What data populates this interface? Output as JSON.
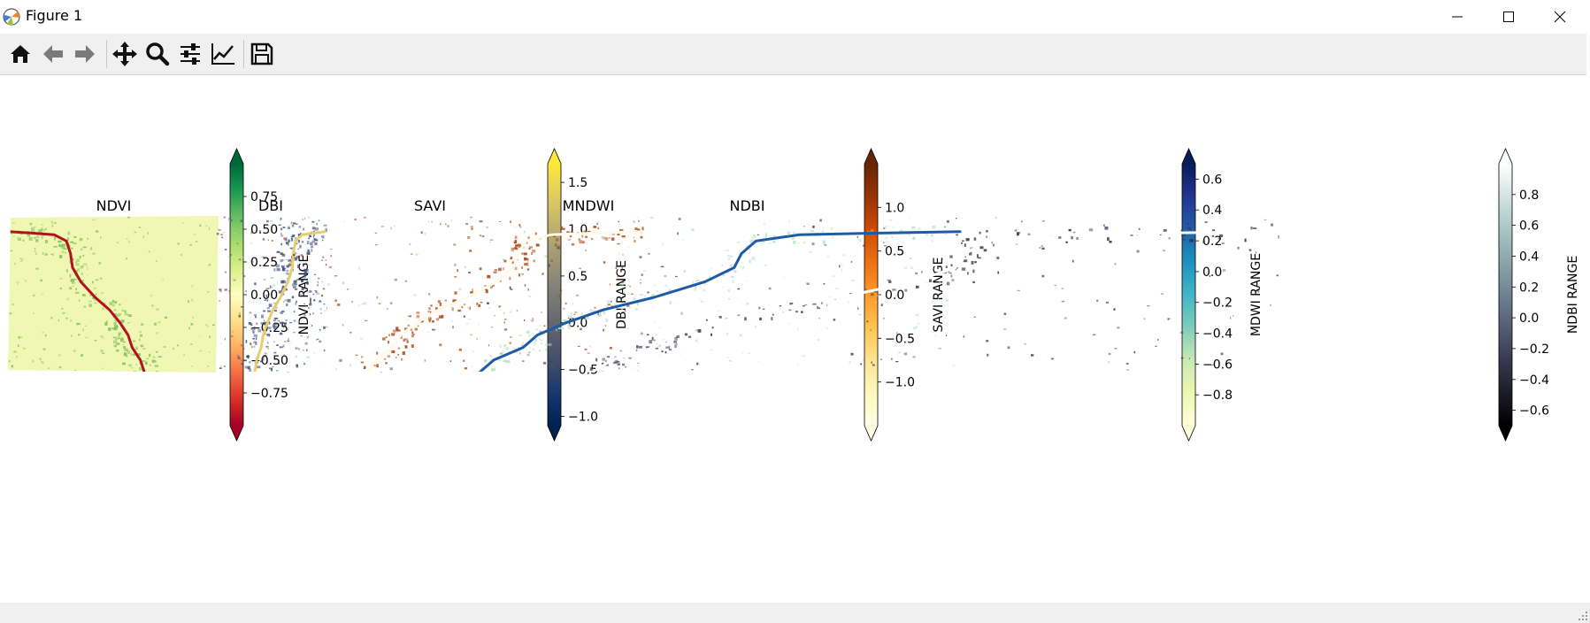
{
  "window": {
    "title": "Figure 1",
    "app_icon": "matplotlib-icon",
    "controls": [
      "minimize-icon",
      "maximize-icon",
      "close-icon"
    ]
  },
  "toolbar": {
    "buttons": [
      {
        "name": "home-button",
        "icon": "home-icon"
      },
      {
        "name": "back-button",
        "icon": "arrow-left-icon"
      },
      {
        "name": "forward-button",
        "icon": "arrow-right-icon"
      },
      {
        "name": "pan-button",
        "icon": "move-icon"
      },
      {
        "name": "zoom-button",
        "icon": "magnifier-icon"
      },
      {
        "name": "subplots-button",
        "icon": "sliders-icon"
      },
      {
        "name": "edit-axes-button",
        "icon": "line-chart-icon"
      },
      {
        "name": "save-button",
        "icon": "floppy-disk-icon"
      }
    ]
  },
  "figure": {
    "panels": [
      {
        "title": "NDVI",
        "colorbar_label": "NDVI_RANGE",
        "colormap": "RdYlGn",
        "colormap_stops": [
          "#a50026",
          "#d73027",
          "#f46d43",
          "#fdae61",
          "#fee08b",
          "#ffffbf",
          "#d9ef8b",
          "#a6d96a",
          "#66bd63",
          "#1a9850",
          "#006837"
        ],
        "vmin": -1.0,
        "vmax": 1.0,
        "ticks": [
          -0.75,
          -0.5,
          -0.25,
          0.0,
          0.25,
          0.5,
          0.75
        ],
        "tick_labels": [
          "−0.75",
          "−0.50",
          "−0.25",
          "0.00",
          "0.25",
          "0.50",
          "0.75"
        ],
        "extend": "both",
        "image_background": "#f0f7b2",
        "river_color": "#b4121f",
        "texture_color": "#7dbf5a"
      },
      {
        "title": "DBI",
        "colorbar_label": "DBI RANGE",
        "colormap": "cividis",
        "colormap_stops": [
          "#00224e",
          "#123570",
          "#3b496c",
          "#575d6d",
          "#707173",
          "#8a8779",
          "#a69d75",
          "#c4b56c",
          "#e4cf5b",
          "#fee838"
        ],
        "vmin": -1.1,
        "vmax": 1.7,
        "ticks": [
          -1.0,
          -0.5,
          0.0,
          0.5,
          1.0,
          1.5
        ],
        "tick_labels": [
          "−1.0",
          "−0.5",
          "0.0",
          "0.5",
          "1.0",
          "1.5"
        ],
        "extend": "both",
        "image_background": "#6e6f72",
        "river_color": "#e6cf6a",
        "texture_color": "#3d4e7a"
      },
      {
        "title": "SAVI",
        "colorbar_label": "SAVI RANGE",
        "colormap": "YlOrBr",
        "colormap_stops": [
          "#ffffe5",
          "#fff7bc",
          "#fee391",
          "#fec44f",
          "#fe9929",
          "#ec7014",
          "#cc4c02",
          "#993404",
          "#662506"
        ],
        "vmin": -1.5,
        "vmax": 1.5,
        "ticks": [
          -1.0,
          -0.5,
          0.0,
          0.5,
          1.0
        ],
        "tick_labels": [
          "−1.0",
          "−0.5",
          "0.0",
          "0.5",
          "1.0"
        ],
        "extend": "both",
        "image_background": "#f58a24",
        "river_color": "#fffbe8",
        "texture_color": "#a8420c"
      },
      {
        "title": "MNDWI",
        "colorbar_label": "MDWI RANGE",
        "colormap": "YlGnBu",
        "colormap_stops": [
          "#ffffd9",
          "#edf8b1",
          "#c7e9b4",
          "#7fcdbb",
          "#41b6c4",
          "#1d91c0",
          "#225ea8",
          "#253494",
          "#081d58"
        ],
        "vmin": -1.0,
        "vmax": 0.7,
        "ticks": [
          -0.8,
          -0.6,
          -0.4,
          -0.2,
          0.0,
          0.2,
          0.4,
          0.6
        ],
        "tick_labels": [
          "−0.8",
          "−0.6",
          "−0.4",
          "−0.2",
          "0.0",
          "0.2",
          "0.4",
          "0.6"
        ],
        "extend": "both",
        "image_background": "#6ccad0",
        "river_color": "#1e5aa5",
        "texture_color": "#b9e3c6"
      },
      {
        "title": "NDBI",
        "colorbar_label": "NDBI RANGE",
        "colormap": "bone",
        "colormap_stops": [
          "#000000",
          "#1c1c27",
          "#38394f",
          "#545d76",
          "#6f8290",
          "#8ba5aa",
          "#a9c5c5",
          "#d4e2e2",
          "#ffffff"
        ],
        "vmin": -0.7,
        "vmax": 1.0,
        "ticks": [
          -0.6,
          -0.4,
          -0.2,
          0.0,
          0.2,
          0.4,
          0.6,
          0.8
        ],
        "tick_labels": [
          "−0.6",
          "−0.4",
          "−0.2",
          "0.0",
          "0.2",
          "0.4",
          "0.6",
          "0.8"
        ],
        "extend": "both",
        "image_background": "#5b6478",
        "river_color": "#ffffff",
        "texture_color": "#2c3347"
      }
    ]
  }
}
